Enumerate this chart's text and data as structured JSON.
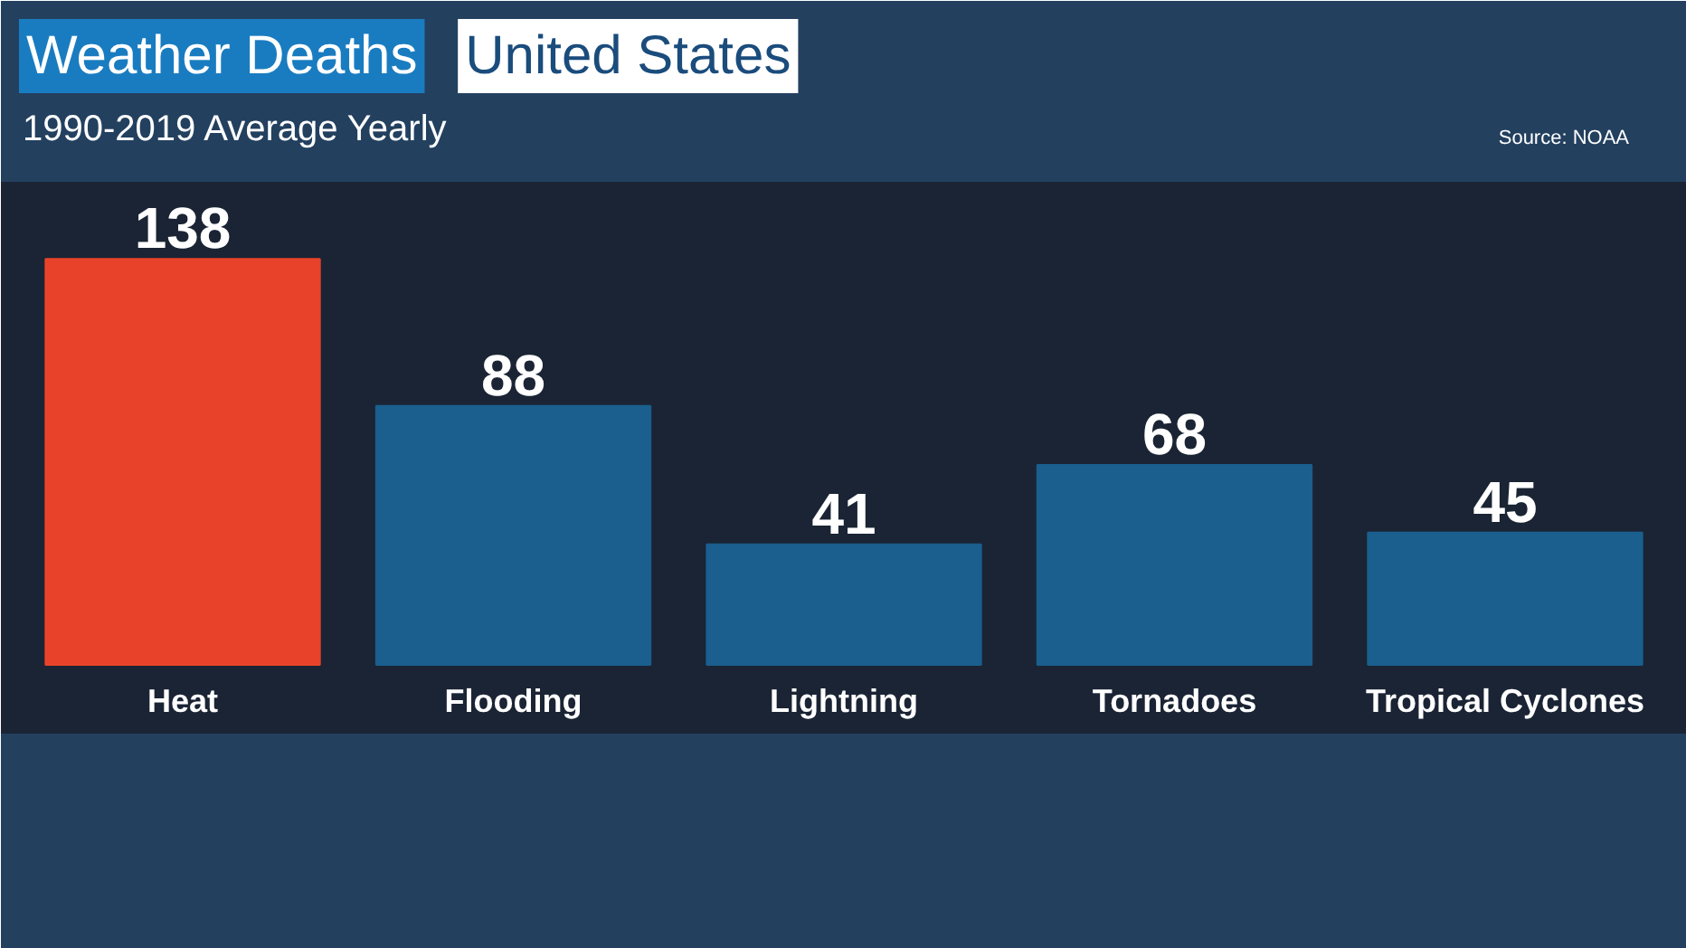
{
  "chart_data": {
    "type": "bar",
    "title": "Weather Deaths",
    "subtitle": "1990-2019 Average Yearly",
    "annotations": [
      "United States",
      "Source: NOAA"
    ],
    "categories": [
      "Heat",
      "Flooding",
      "Lightning",
      "Tornadoes",
      "Tropical Cyclones"
    ],
    "values": [
      138,
      88,
      41,
      68,
      45
    ],
    "colors": [
      "#e8432a",
      "#1a5f8e",
      "#1a5f8e",
      "#1a5f8e",
      "#1a5f8e"
    ],
    "data_labels": true,
    "grid": false
  }
}
